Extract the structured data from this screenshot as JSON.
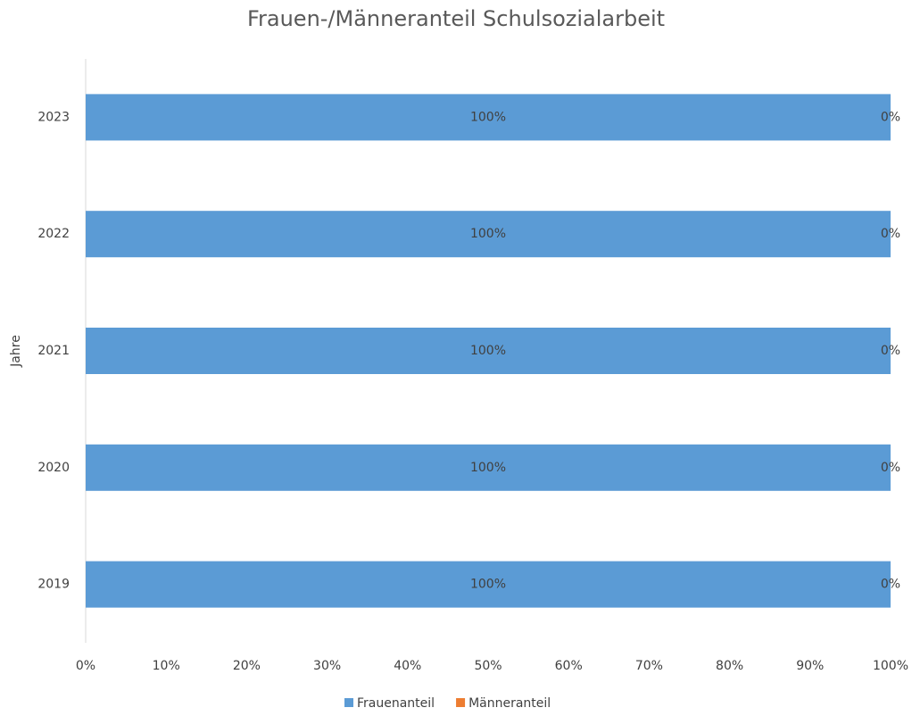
{
  "chart_data": {
    "type": "stacked_barh",
    "title": "Frauen-/Männeranteil Schulsozialarbeit",
    "y_label": "Jahre",
    "categories": [
      "2019",
      "2020",
      "2021",
      "2022",
      "2023"
    ],
    "series": [
      {
        "name": "Frauenanteil",
        "color": "#5b9bd5",
        "values": [
          100,
          100,
          100,
          100,
          100
        ],
        "value_labels": [
          "100%",
          "100%",
          "100%",
          "100%",
          "100%"
        ]
      },
      {
        "name": "Männeranteil",
        "color": "#ed7d31",
        "values": [
          0,
          0,
          0,
          0,
          0
        ],
        "value_labels": [
          "0%",
          "0%",
          "0%",
          "0%",
          "0%"
        ]
      }
    ],
    "xlim": [
      0,
      100
    ],
    "xticks": [
      {
        "value": 0,
        "label": "0%"
      },
      {
        "value": 10,
        "label": "10%"
      },
      {
        "value": 20,
        "label": "20%"
      },
      {
        "value": 30,
        "label": "30%"
      },
      {
        "value": 40,
        "label": "40%"
      },
      {
        "value": 50,
        "label": "50%"
      },
      {
        "value": 60,
        "label": "60%"
      },
      {
        "value": 70,
        "label": "70%"
      },
      {
        "value": 80,
        "label": "80%"
      },
      {
        "value": 90,
        "label": "90%"
      },
      {
        "value": 100,
        "label": "100%"
      }
    ],
    "grid": false,
    "legend": "bottom"
  }
}
